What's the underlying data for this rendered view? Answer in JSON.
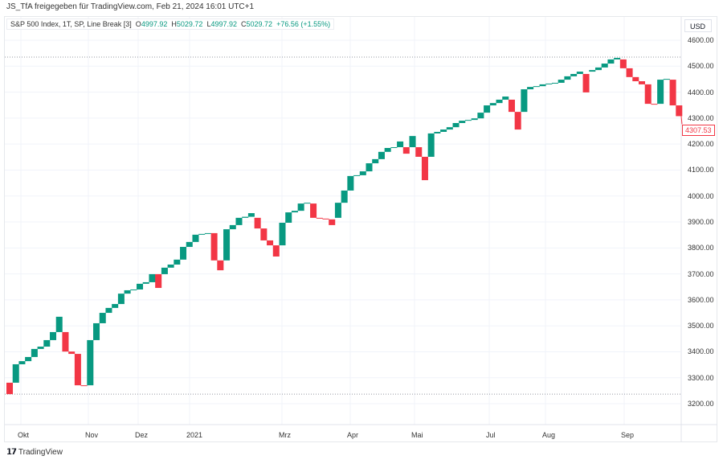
{
  "header": {
    "shared_by": "JS_TfA freigegeben für TradingView.com, Feb 21, 2024 16:01 UTC+1"
  },
  "legend": {
    "symbol": "S&P 500 Index, 1T, SP, Line Break [3]",
    "o_label": "O",
    "o": "4997.92",
    "h_label": "H",
    "h": "5029.72",
    "l_label": "L",
    "l": "4997.92",
    "c_label": "C",
    "c": "5029.72",
    "change": "+76.56 (+1.55%)"
  },
  "price_scale": {
    "currency": "USD",
    "labels": [
      "4600.00",
      "4500.00",
      "4400.00",
      "4300.00",
      "4200.00",
      "4100.00",
      "4000.00",
      "3900.00",
      "3800.00",
      "3700.00",
      "3600.00",
      "3500.00",
      "3400.00",
      "3300.00",
      "3200.00"
    ],
    "last_price": "4307.53"
  },
  "time_axis": {
    "labels": [
      "Okt",
      "Nov",
      "Dez",
      "2021",
      "Mrz",
      "Apr",
      "Mai",
      "Jul",
      "Aug",
      "Sep"
    ]
  },
  "footer": {
    "brand": "TradingView",
    "logo": "17"
  },
  "colors": {
    "up": "#089981",
    "down": "#f23645",
    "grid": "#f0f3fa"
  },
  "chart_data": {
    "type": "line-break",
    "ylim": [
      3150,
      4650
    ],
    "grid": true,
    "high_line": 4535,
    "low_line": 3237,
    "bricks": [
      [
        3281,
        3237
      ],
      [
        3281,
        3352
      ],
      [
        3352,
        3364
      ],
      [
        3364,
        3380
      ],
      [
        3380,
        3411
      ],
      [
        3411,
        3420
      ],
      [
        3420,
        3445
      ],
      [
        3445,
        3476
      ],
      [
        3476,
        3535
      ],
      [
        3476,
        3401
      ],
      [
        3401,
        3392
      ],
      [
        3392,
        3271
      ],
      [
        3271,
        3270
      ],
      [
        3271,
        3445
      ],
      [
        3445,
        3510
      ],
      [
        3510,
        3550
      ],
      [
        3550,
        3569
      ],
      [
        3569,
        3584
      ],
      [
        3584,
        3624
      ],
      [
        3624,
        3637
      ],
      [
        3637,
        3640
      ],
      [
        3640,
        3662
      ],
      [
        3662,
        3668
      ],
      [
        3668,
        3699
      ],
      [
        3699,
        3646
      ],
      [
        3699,
        3724
      ],
      [
        3724,
        3736
      ],
      [
        3736,
        3755
      ],
      [
        3755,
        3804
      ],
      [
        3804,
        3823
      ],
      [
        3823,
        3851
      ],
      [
        3851,
        3854
      ],
      [
        3854,
        3857
      ],
      [
        3857,
        3752
      ],
      [
        3752,
        3714
      ],
      [
        3752,
        3872
      ],
      [
        3872,
        3888
      ],
      [
        3888,
        3916
      ],
      [
        3916,
        3920
      ],
      [
        3920,
        3934
      ],
      [
        3916,
        3875
      ],
      [
        3875,
        3829
      ],
      [
        3829,
        3810
      ],
      [
        3810,
        3767
      ],
      [
        3810,
        3897
      ],
      [
        3897,
        3937
      ],
      [
        3937,
        3943
      ],
      [
        3943,
        3971
      ],
      [
        3971,
        3974
      ],
      [
        3971,
        3916
      ],
      [
        3916,
        3913
      ],
      [
        3913,
        3910
      ],
      [
        3910,
        3888
      ],
      [
        3916,
        3974
      ],
      [
        3974,
        4021
      ],
      [
        4021,
        4077
      ],
      [
        4077,
        4080
      ],
      [
        4080,
        4095
      ],
      [
        4095,
        4126
      ],
      [
        4126,
        4142
      ],
      [
        4142,
        4170
      ],
      [
        4170,
        4185
      ],
      [
        4185,
        4188
      ],
      [
        4188,
        4210
      ],
      [
        4188,
        4163
      ],
      [
        4188,
        4231
      ],
      [
        4188,
        4151
      ],
      [
        4151,
        4061
      ],
      [
        4151,
        4241
      ],
      [
        4241,
        4247
      ],
      [
        4247,
        4256
      ],
      [
        4256,
        4265
      ],
      [
        4265,
        4281
      ],
      [
        4281,
        4290
      ],
      [
        4290,
        4293
      ],
      [
        4293,
        4299
      ],
      [
        4299,
        4321
      ],
      [
        4321,
        4349
      ],
      [
        4349,
        4358
      ],
      [
        4358,
        4371
      ],
      [
        4371,
        4383
      ],
      [
        4371,
        4324
      ],
      [
        4324,
        4256
      ],
      [
        4324,
        4411
      ],
      [
        4411,
        4420
      ],
      [
        4420,
        4423
      ],
      [
        4423,
        4430
      ],
      [
        4430,
        4433
      ],
      [
        4433,
        4436
      ],
      [
        4436,
        4448
      ],
      [
        4448,
        4461
      ],
      [
        4461,
        4470
      ],
      [
        4470,
        4479
      ],
      [
        4470,
        4399
      ],
      [
        4479,
        4485
      ],
      [
        4485,
        4495
      ],
      [
        4495,
        4510
      ],
      [
        4510,
        4526
      ],
      [
        4526,
        4532
      ],
      [
        4526,
        4492
      ],
      [
        4492,
        4458
      ],
      [
        4458,
        4442
      ],
      [
        4442,
        4430
      ],
      [
        4430,
        4355
      ],
      [
        4355,
        4352
      ],
      [
        4355,
        4448
      ],
      [
        4448,
        4451
      ],
      [
        4448,
        4349
      ],
      [
        4349,
        4307.53
      ]
    ]
  }
}
